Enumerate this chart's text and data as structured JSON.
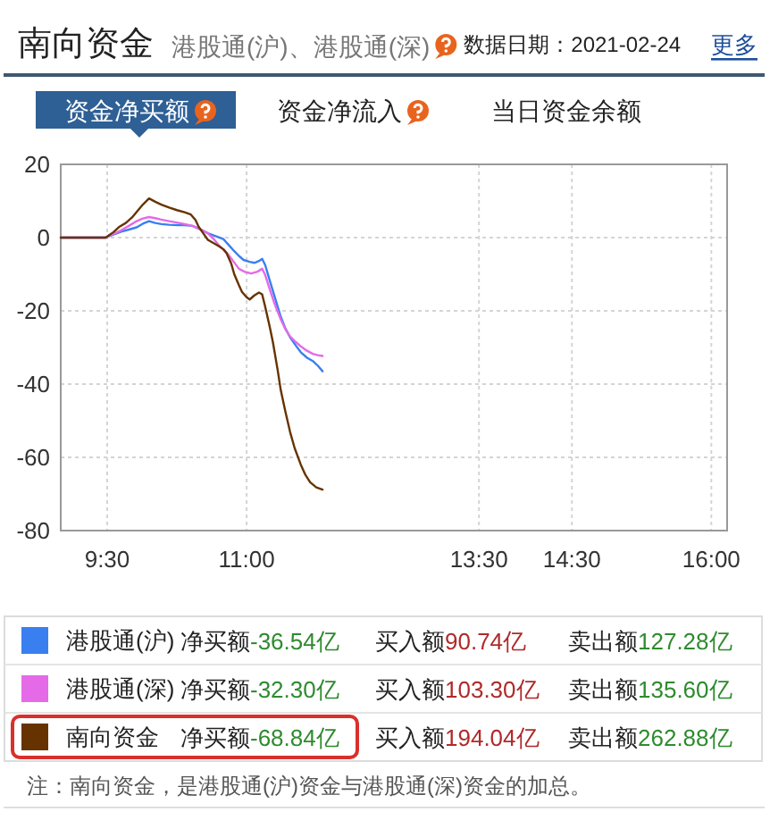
{
  "chart_data": {
    "type": "line",
    "title": "南向资金",
    "subtitle": "港股通(沪)、港股通(深)",
    "annotations": [
      "数据日期：2021-02-24",
      "更多",
      "资金净买额",
      "资金净流入",
      "当日资金余额",
      "净买额-36.54亿",
      "买入额90.74亿",
      "卖出额127.28亿",
      "净买额-32.30亿",
      "买入额103.30亿",
      "卖出额135.60亿",
      "净买额-68.84亿",
      "买入额194.04亿",
      "卖出额262.88亿",
      "注：南向资金，是港股通(沪)资金与港股通(深)资金的加总。"
    ],
    "xlim": [
      9,
      16.17
    ],
    "xticks": [
      {
        "value": 9.5,
        "label": "9:30"
      },
      {
        "value": 11,
        "label": "11:00"
      },
      {
        "value": 13.5,
        "label": "13:30"
      },
      {
        "value": 14.5,
        "label": "14:30"
      },
      {
        "value": 16,
        "label": "16:00"
      }
    ],
    "ylim": [
      -80,
      20
    ],
    "yticks": [
      20,
      0,
      -20,
      -40,
      -60,
      -80
    ],
    "grid": true,
    "legend": "bottom",
    "series": [
      {
        "name": "港股通(沪)",
        "color": "#3a7ff0",
        "x": [
          9,
          9.483,
          9.567,
          9.65,
          9.733,
          9.817,
          9.883,
          9.95,
          10.017,
          10.083,
          10.167,
          10.25,
          10.333,
          10.417,
          10.5,
          10.583,
          10.667,
          10.75,
          10.8,
          10.867,
          10.917,
          10.967,
          11.033,
          11.083,
          11.133,
          11.167,
          11.2,
          11.25,
          11.3,
          11.367,
          11.417,
          11.467,
          11.533,
          11.583,
          11.65,
          11.717,
          11.767,
          11.817
        ],
        "values": [
          0,
          0,
          0.8,
          1.6,
          2.2,
          2.8,
          3.8,
          4.5,
          4.0,
          3.7,
          3.5,
          3.4,
          3.4,
          3.2,
          2.3,
          1.2,
          0.4,
          -0.4,
          -1.8,
          -3.7,
          -5.0,
          -6.1,
          -6.6,
          -6.9,
          -6.4,
          -5.8,
          -7.5,
          -11.8,
          -16,
          -21.6,
          -24.8,
          -27.2,
          -29.6,
          -31.3,
          -32.8,
          -33.8,
          -35.0,
          -36.5
        ]
      },
      {
        "name": "港股通(深)",
        "color": "#e46ae8",
        "x": [
          9,
          9.483,
          9.567,
          9.65,
          9.733,
          9.817,
          9.883,
          9.95,
          10.017,
          10.083,
          10.167,
          10.25,
          10.333,
          10.417,
          10.5,
          10.583,
          10.65,
          10.7,
          10.75,
          10.8,
          10.867,
          10.917,
          10.983,
          11.05,
          11.117,
          11.167,
          11.2,
          11.25,
          11.3,
          11.367,
          11.417,
          11.467,
          11.533,
          11.583,
          11.65,
          11.717,
          11.767,
          11.817
        ],
        "values": [
          0,
          0,
          1.0,
          2.0,
          3.2,
          4.5,
          5.2,
          5.6,
          5.3,
          4.9,
          4.5,
          4.1,
          3.7,
          3.2,
          2.3,
          1.2,
          -0.5,
          -2.1,
          -3.2,
          -4.5,
          -6.8,
          -8.5,
          -9.4,
          -9.8,
          -9.3,
          -8.5,
          -10.2,
          -14.2,
          -18,
          -22.3,
          -25,
          -27,
          -28.6,
          -29.7,
          -30.9,
          -31.8,
          -32.1,
          -32.3
        ]
      },
      {
        "name": "南向资金",
        "color": "#663300",
        "x": [
          9,
          9.483,
          9.567,
          9.633,
          9.7,
          9.767,
          9.817,
          9.883,
          9.95,
          10.017,
          10.083,
          10.167,
          10.25,
          10.333,
          10.4,
          10.45,
          10.483,
          10.533,
          10.583,
          10.65,
          10.7,
          10.75,
          10.783,
          10.833,
          10.867,
          10.917,
          10.95,
          11.0,
          11.033,
          11.083,
          11.133,
          11.167,
          11.2,
          11.25,
          11.283,
          11.333,
          11.367,
          11.417,
          11.467,
          11.517,
          11.583,
          11.633,
          11.683,
          11.75,
          11.817
        ],
        "values": [
          0,
          0,
          1.5,
          3.0,
          4.0,
          5.5,
          7.0,
          9.0,
          10.7,
          9.8,
          9.0,
          8.2,
          7.5,
          6.9,
          6.3,
          4.8,
          3.0,
          1.2,
          -0.6,
          -1.6,
          -2.3,
          -3.2,
          -4.2,
          -7.0,
          -10.0,
          -13.0,
          -14.8,
          -16.3,
          -16.9,
          -15.8,
          -15.0,
          -15.5,
          -18.9,
          -24.5,
          -28.6,
          -36,
          -41.6,
          -47.5,
          -53.0,
          -57.5,
          -62.0,
          -64.8,
          -66.8,
          -68.2,
          -68.8
        ]
      }
    ]
  }
}
